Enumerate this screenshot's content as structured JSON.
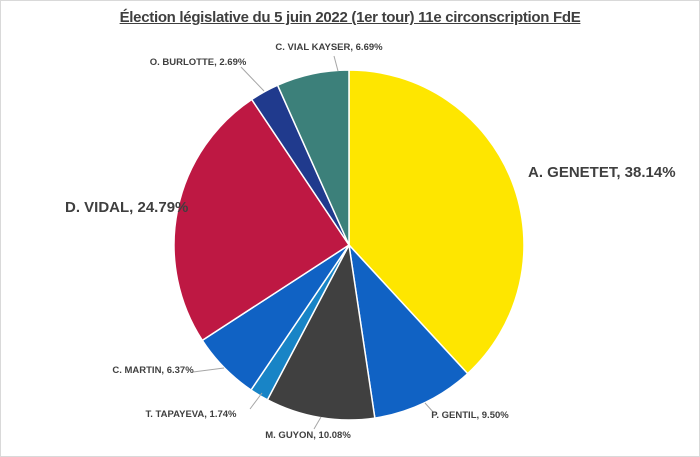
{
  "title": "Élection législative du 5 juin 2022 (1er tour) 11e circonscription FdE",
  "chart_data": {
    "type": "pie",
    "title": "Élection législative du 5 juin 2022 (1er tour) 11e circonscription FdE",
    "start_angle_deg": 0,
    "direction": "clockwise",
    "legend_position": "none",
    "categories": [
      "A. GENETET",
      "P. GENTIL",
      "M. GUYON",
      "T. TAPAYEVA",
      "C. MARTIN",
      "D. VIDAL",
      "O. BURLOTTE",
      "C. VIAL KAYSER"
    ],
    "values": [
      38.14,
      9.5,
      10.08,
      1.74,
      6.37,
      24.79,
      2.69,
      6.69
    ],
    "colors": [
      "#fee600",
      "#1062c4",
      "#404040",
      "#1884c6",
      "#1062c4",
      "#be1843",
      "#203a8d",
      "#3c807a"
    ],
    "slice_labels": [
      "A. GENETET, 38.14%",
      "P. GENTIL, 9.50%",
      "M. GUYON, 10.08%",
      "T. TAPAYEVA, 1.74%",
      "C. MARTIN, 6.37%",
      "D. VIDAL, 24.79%",
      "O. BURLOTTE, 2.69%",
      "C. VIAL KAYSER, 6.69%"
    ],
    "leader_line_color": "#a6a6a6",
    "title_color": "#3f3f3f",
    "label_color": "#3f3f3f"
  }
}
